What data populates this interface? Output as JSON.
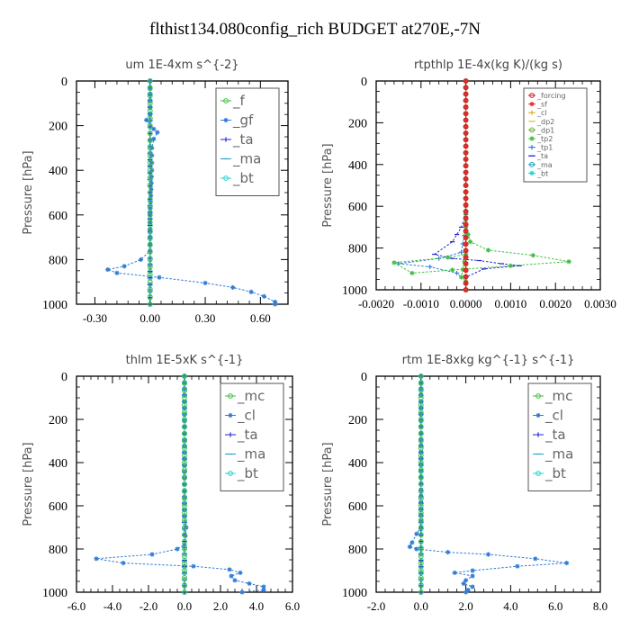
{
  "figure": {
    "title": "flthist134.080config_rich  BUDGET at270E,-7N"
  },
  "chart_data": [
    {
      "type": "line",
      "title": "um  1E-4xm s^{-2}",
      "ylabel": "Pressure [hPa]",
      "xlim": [
        -0.4,
        0.75
      ],
      "ylim": [
        0,
        1000
      ],
      "y_inverted": true,
      "xticks": [
        -0.3,
        0.0,
        0.3,
        0.6
      ],
      "xtick_labels": [
        "-0.30",
        "0.00",
        "0.30",
        "0.60"
      ],
      "yticks": [
        0,
        200,
        400,
        600,
        800,
        1000
      ],
      "legend_position": "top-right",
      "legend_size": "large",
      "series": [
        {
          "name": "_f",
          "color": "#3fbf3f",
          "points": [
            [
              0.0,
              0
            ],
            [
              0.0,
              100
            ],
            [
              0.0,
              200
            ],
            [
              0.0,
              300
            ],
            [
              0.0,
              400
            ],
            [
              0.0,
              500
            ],
            [
              0.0,
              600
            ],
            [
              0.0,
              700
            ],
            [
              0.0,
              800
            ],
            [
              0.0,
              900
            ],
            [
              0.0,
              1000
            ]
          ]
        },
        {
          "name": "_gf",
          "color": "#2e7bd6",
          "points": [
            [
              0.0,
              0
            ],
            [
              0.0,
              150
            ],
            [
              -0.02,
              175
            ],
            [
              0.02,
              215
            ],
            [
              0.04,
              230
            ],
            [
              0.02,
              260
            ],
            [
              0.01,
              300
            ],
            [
              0.01,
              400
            ],
            [
              0.0,
              600
            ],
            [
              0.0,
              700
            ],
            [
              0.0,
              760
            ],
            [
              -0.05,
              800
            ],
            [
              -0.14,
              830
            ],
            [
              -0.23,
              845
            ],
            [
              -0.18,
              860
            ],
            [
              0.05,
              880
            ],
            [
              0.3,
              905
            ],
            [
              0.45,
              925
            ],
            [
              0.55,
              945
            ],
            [
              0.62,
              965
            ],
            [
              0.68,
              990
            ],
            [
              0.68,
              1000
            ]
          ]
        },
        {
          "name": "_ta",
          "color": "#2020d0",
          "points": [
            [
              0.0,
              0
            ],
            [
              0.0,
              500
            ],
            [
              0.0,
              1000
            ]
          ]
        },
        {
          "name": "_ma",
          "color": "#1f9ec9",
          "points": [
            [
              0.0,
              0
            ],
            [
              0.0,
              500
            ],
            [
              0.0,
              1000
            ]
          ]
        },
        {
          "name": "_bt",
          "color": "#1fd4d4",
          "points": [
            [
              0.0,
              0
            ],
            [
              0.0,
              500
            ],
            [
              0.0,
              1000
            ]
          ]
        }
      ]
    },
    {
      "type": "line",
      "title": "rtpthlp  1E-4x(kg K)/(kg s)",
      "ylabel": "Pressure [hPa]",
      "xlim": [
        -0.002,
        0.003
      ],
      "ylim": [
        0,
        1000
      ],
      "y_inverted": true,
      "xticks": [
        -0.002,
        -0.001,
        0.0,
        0.001,
        0.002,
        0.003
      ],
      "xtick_labels": [
        "-0.0020",
        "-0.0010",
        "0.0000",
        "0.0010",
        "0.0020",
        "0.0030"
      ],
      "yticks": [
        0,
        200,
        400,
        600,
        800,
        1000
      ],
      "legend_position": "top-right",
      "legend_size": "small",
      "series": [
        {
          "name": "_forcing",
          "color": "#d42020",
          "points": [
            [
              0.0,
              0
            ],
            [
              0.0,
              500
            ],
            [
              0.0,
              1000
            ]
          ]
        },
        {
          "name": "_sf",
          "color": "#e03030",
          "points": [
            [
              0.0,
              0
            ],
            [
              0.0,
              500
            ],
            [
              0.0,
              1000
            ]
          ]
        },
        {
          "name": "_cl",
          "color": "#e0b020",
          "points": [
            [
              0.0,
              0
            ],
            [
              0.0,
              500
            ],
            [
              0.0,
              1000
            ]
          ]
        },
        {
          "name": "_dp2",
          "color": "#e0c040",
          "points": [
            [
              0.0,
              0
            ],
            [
              0.0,
              500
            ],
            [
              0.0,
              1000
            ]
          ]
        },
        {
          "name": "_dp1",
          "color": "#6fb23f",
          "points": [
            [
              0.0,
              0
            ],
            [
              0.0,
              500
            ],
            [
              0.0,
              1000
            ]
          ]
        },
        {
          "name": "_tp2",
          "color": "#3fbf3f",
          "points": [
            [
              0.0,
              600
            ],
            [
              0.0,
              700
            ],
            [
              0.0001,
              770
            ],
            [
              0.0005,
              810
            ],
            [
              0.0015,
              835
            ],
            [
              0.0023,
              865
            ],
            [
              0.001,
              885
            ],
            [
              -0.0003,
              905
            ],
            [
              -0.0012,
              920
            ],
            [
              -0.0016,
              870
            ],
            [
              -0.0004,
              845
            ],
            [
              0.0,
              830
            ],
            [
              -0.0001,
              940
            ],
            [
              0.0,
              960
            ],
            [
              0.0,
              1000
            ]
          ]
        },
        {
          "name": "_tp1",
          "color": "#2e7bd6",
          "points": [
            [
              0.0,
              700
            ],
            [
              -0.0001,
              820
            ],
            [
              -0.0006,
              850
            ],
            [
              -0.0015,
              875
            ],
            [
              -0.0008,
              890
            ],
            [
              -0.0002,
              920
            ],
            [
              0.0,
              960
            ],
            [
              0.0,
              1000
            ]
          ]
        },
        {
          "name": "_ta",
          "color": "#2020d0",
          "points": [
            [
              0.0,
              640
            ],
            [
              -0.0001,
              700
            ],
            [
              -0.0003,
              770
            ],
            [
              -0.0007,
              830
            ],
            [
              -0.0003,
              850
            ],
            [
              0.0003,
              860
            ],
            [
              0.0008,
              875
            ],
            [
              0.0012,
              885
            ],
            [
              0.0004,
              900
            ],
            [
              0.0,
              940
            ],
            [
              0.0,
              1000
            ]
          ]
        },
        {
          "name": "_ma",
          "color": "#1f9ec9",
          "points": [
            [
              0.0,
              0
            ],
            [
              0.0,
              500
            ],
            [
              0.0,
              1000
            ]
          ]
        },
        {
          "name": "_bt",
          "color": "#1fd4d4",
          "points": [
            [
              0.0,
              0
            ],
            [
              0.0,
              500
            ],
            [
              0.0,
              1000
            ]
          ]
        }
      ]
    },
    {
      "type": "line",
      "title": "thlm  1E-5xK s^{-1}",
      "ylabel": "Pressure [hPa]",
      "xlim": [
        -6,
        6
      ],
      "ylim": [
        0,
        1000
      ],
      "y_inverted": true,
      "xticks": [
        -6,
        -4,
        -2,
        0,
        2,
        4,
        6
      ],
      "xtick_labels": [
        "-6.0",
        "-4.0",
        "-2.0",
        "0.0",
        "2.0",
        "4.0",
        "6.0"
      ],
      "yticks": [
        0,
        200,
        400,
        600,
        800,
        1000
      ],
      "legend_position": "top-right",
      "legend_size": "large",
      "series": [
        {
          "name": "_mc",
          "color": "#3fbf3f",
          "points": [
            [
              0.0,
              0
            ],
            [
              0.0,
              200
            ],
            [
              0.0,
              400
            ],
            [
              0.0,
              600
            ],
            [
              0.0,
              800
            ],
            [
              0.0,
              1000
            ]
          ]
        },
        {
          "name": "_cl",
          "color": "#2e7bd6",
          "points": [
            [
              0.0,
              0
            ],
            [
              0.0,
              650
            ],
            [
              0.1,
              700
            ],
            [
              0.0,
              780
            ],
            [
              -0.4,
              800
            ],
            [
              -1.8,
              825
            ],
            [
              -4.9,
              845
            ],
            [
              -3.4,
              865
            ],
            [
              0.5,
              880
            ],
            [
              2.5,
              895
            ],
            [
              3.1,
              910
            ],
            [
              2.6,
              925
            ],
            [
              2.8,
              945
            ],
            [
              3.6,
              960
            ],
            [
              4.4,
              975
            ],
            [
              4.4,
              990
            ],
            [
              3.2,
              1000
            ]
          ]
        },
        {
          "name": "_ta",
          "color": "#2020d0",
          "points": [
            [
              0.0,
              0
            ],
            [
              0.0,
              500
            ],
            [
              0.0,
              1000
            ]
          ]
        },
        {
          "name": "_ma",
          "color": "#1f9ec9",
          "points": [
            [
              0.0,
              0
            ],
            [
              0.0,
              500
            ],
            [
              0.0,
              1000
            ]
          ]
        },
        {
          "name": "_bt",
          "color": "#1fd4d4",
          "points": [
            [
              0.0,
              0
            ],
            [
              0.0,
              500
            ],
            [
              0.0,
              1000
            ]
          ]
        }
      ]
    },
    {
      "type": "line",
      "title": "rtm  1E-8xkg kg^{-1} s^{-1}",
      "ylabel": "Pressure [hPa]",
      "xlim": [
        -2,
        8
      ],
      "ylim": [
        0,
        1000
      ],
      "y_inverted": true,
      "xticks": [
        -2,
        0,
        2,
        4,
        6,
        8
      ],
      "xtick_labels": [
        "-2.0",
        "0.0",
        "2.0",
        "4.0",
        "6.0",
        "8.0"
      ],
      "yticks": [
        0,
        200,
        400,
        600,
        800,
        1000
      ],
      "legend_position": "top-right",
      "legend_size": "large",
      "series": [
        {
          "name": "_mc",
          "color": "#3fbf3f",
          "points": [
            [
              0.0,
              0
            ],
            [
              0.0,
              200
            ],
            [
              0.0,
              400
            ],
            [
              0.0,
              600
            ],
            [
              0.0,
              800
            ],
            [
              0.0,
              1000
            ]
          ]
        },
        {
          "name": "_cl",
          "color": "#2e7bd6",
          "points": [
            [
              0.0,
              0
            ],
            [
              0.0,
              700
            ],
            [
              -0.2,
              730
            ],
            [
              -0.4,
              770
            ],
            [
              -0.5,
              790
            ],
            [
              -0.2,
              800
            ],
            [
              1.2,
              815
            ],
            [
              3.0,
              825
            ],
            [
              5.1,
              845
            ],
            [
              6.5,
              865
            ],
            [
              4.3,
              880
            ],
            [
              2.3,
              900
            ],
            [
              1.5,
              910
            ],
            [
              2.3,
              925
            ],
            [
              2.0,
              945
            ],
            [
              1.9,
              960
            ],
            [
              2.3,
              975
            ],
            [
              2.1,
              990
            ],
            [
              2.0,
              1000
            ]
          ]
        },
        {
          "name": "_ta",
          "color": "#2020d0",
          "points": [
            [
              0.0,
              0
            ],
            [
              0.0,
              500
            ],
            [
              0.0,
              1000
            ]
          ]
        },
        {
          "name": "_ma",
          "color": "#1f9ec9",
          "points": [
            [
              0.0,
              0
            ],
            [
              0.0,
              500
            ],
            [
              0.0,
              1000
            ]
          ]
        },
        {
          "name": "_bt",
          "color": "#1fd4d4",
          "points": [
            [
              0.0,
              0
            ],
            [
              0.0,
              500
            ],
            [
              0.0,
              1000
            ]
          ]
        }
      ]
    }
  ]
}
